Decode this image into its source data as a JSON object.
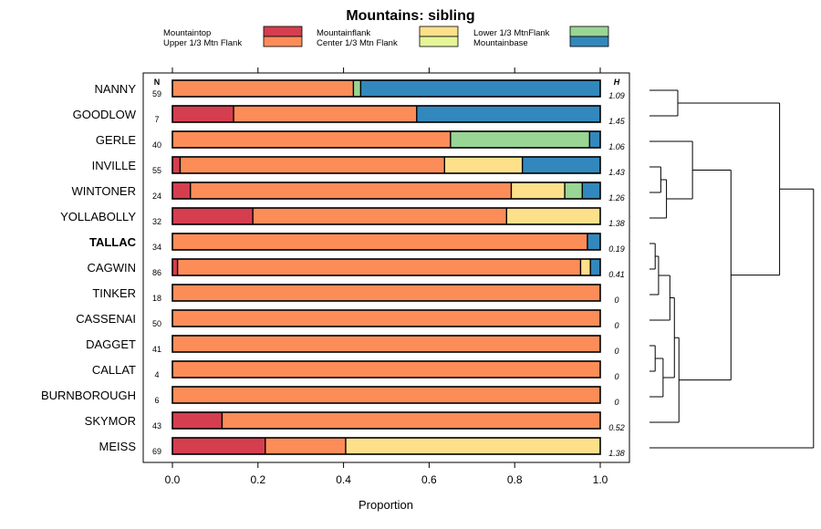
{
  "chart_data": {
    "type": "bar",
    "orientation": "horizontal",
    "stacked": true,
    "title": "Mountains: sibling",
    "xlabel": "Proportion",
    "xlim": [
      0,
      1
    ],
    "xticks": [
      "0.0",
      "0.2",
      "0.4",
      "0.6",
      "0.8",
      "1.0"
    ],
    "xtick_values": [
      0,
      0.2,
      0.4,
      0.6,
      0.8,
      1.0
    ],
    "n_header": "N",
    "h_header": "H",
    "legend": [
      {
        "label": "Mountaintop",
        "color": "#d53e4f"
      },
      {
        "label": "Upper 1/3 Mtn Flank",
        "color": "#fc8d59"
      },
      {
        "label": "Mountainflank",
        "color": "#fee08b"
      },
      {
        "label": "Center 1/3 Mtn Flank",
        "color": "#e6f598"
      },
      {
        "label": "Lower 1/3 MtnFlank",
        "color": "#99d594"
      },
      {
        "label": "Mountainbase",
        "color": "#3288bd"
      }
    ],
    "segment_order": [
      "Mountaintop",
      "Upper 1/3 Mtn Flank",
      "Mountainflank",
      "Center 1/3 Mtn Flank",
      "Lower 1/3 MtnFlank",
      "Mountainbase"
    ],
    "rows": [
      {
        "label": "NANNY",
        "n": "59",
        "h": "1.09",
        "values": [
          0,
          0.423,
          0,
          0,
          0.017,
          0.56
        ]
      },
      {
        "label": "GOODLOW",
        "n": "7",
        "h": "1.45",
        "values": [
          0.143,
          0.428,
          0,
          0,
          0,
          0.429
        ]
      },
      {
        "label": "GERLE",
        "n": "40",
        "h": "1.06",
        "values": [
          0,
          0.65,
          0,
          0,
          0.325,
          0.025
        ]
      },
      {
        "label": "INVILLE",
        "n": "55",
        "h": "1.43",
        "values": [
          0.018,
          0.618,
          0.182,
          0,
          0,
          0.182
        ]
      },
      {
        "label": "WINTONER",
        "n": "24",
        "h": "1.26",
        "values": [
          0.042,
          0.75,
          0.125,
          0,
          0.041,
          0.042
        ]
      },
      {
        "label": "YOLLABOLLY",
        "n": "32",
        "h": "1.38",
        "values": [
          0.188,
          0.593,
          0.219,
          0,
          0,
          0
        ]
      },
      {
        "label": "TALLAC",
        "n": "34",
        "h": "0.19",
        "bold": true,
        "values": [
          0,
          0.97,
          0,
          0,
          0,
          0.03
        ]
      },
      {
        "label": "CAGWIN",
        "n": "86",
        "h": "0.41",
        "values": [
          0.012,
          0.942,
          0.023,
          0,
          0,
          0.023
        ]
      },
      {
        "label": "TINKER",
        "n": "18",
        "h": "0",
        "values": [
          0,
          1,
          0,
          0,
          0,
          0
        ]
      },
      {
        "label": "CASSENAI",
        "n": "50",
        "h": "0",
        "values": [
          0,
          1,
          0,
          0,
          0,
          0
        ]
      },
      {
        "label": "DAGGET",
        "n": "41",
        "h": "0",
        "values": [
          0,
          1,
          0,
          0,
          0,
          0
        ]
      },
      {
        "label": "CALLAT",
        "n": "4",
        "h": "0",
        "values": [
          0,
          1,
          0,
          0,
          0,
          0
        ]
      },
      {
        "label": "BURNBOROUGH",
        "n": "6",
        "h": "0",
        "values": [
          0,
          1,
          0,
          0,
          0,
          0
        ]
      },
      {
        "label": "SKYMOR",
        "n": "43",
        "h": "0.52",
        "values": [
          0.116,
          0.884,
          0,
          0,
          0,
          0
        ]
      },
      {
        "label": "MEISS",
        "n": "69",
        "h": "1.38",
        "values": [
          0.217,
          0.188,
          0.595,
          0,
          0,
          0
        ]
      }
    ],
    "dendrogram": {
      "merges": [
        {
          "a": "NANNY",
          "b": "GOODLOW",
          "height": 0.25
        },
        {
          "a": "INVILLE",
          "b": "WINTONER",
          "height": 0.1
        },
        {
          "a": "m1",
          "b": "YOLLABOLLY",
          "height": 0.15
        },
        {
          "a": "GERLE",
          "b": "m2",
          "height": 0.38
        },
        {
          "a": "TALLAC",
          "b": "CAGWIN",
          "height": 0.05
        },
        {
          "a": "m4",
          "b": "TINKER",
          "height": 0.08
        },
        {
          "a": "m5",
          "b": "CASSENAI",
          "height": 0.18
        },
        {
          "a": "DAGGET",
          "b": "CALLAT",
          "height": 0.05
        },
        {
          "a": "m7",
          "b": "BURNBOROUGH",
          "height": 0.12
        },
        {
          "a": "m6",
          "b": "m8",
          "height": 0.22
        },
        {
          "a": "m9",
          "b": "SKYMOR",
          "height": 0.26
        },
        {
          "a": "m3",
          "b": "m10",
          "height": 0.72
        },
        {
          "a": "m0",
          "b": "m11",
          "height": 1.15
        },
        {
          "a": "m12",
          "b": "MEISS",
          "height": 1.45
        }
      ]
    }
  }
}
